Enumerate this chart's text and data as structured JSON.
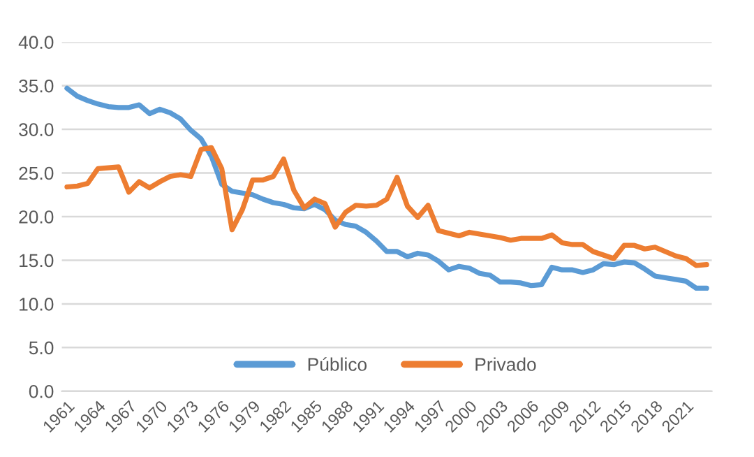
{
  "chart_data": {
    "type": "line",
    "categories": [
      "1961",
      null,
      null,
      "1964",
      null,
      null,
      "1967",
      null,
      null,
      "1970",
      null,
      null,
      "1973",
      null,
      null,
      "1976",
      null,
      null,
      "1979",
      null,
      null,
      "1982",
      null,
      null,
      "1985",
      null,
      null,
      "1988",
      null,
      null,
      "1991",
      null,
      null,
      "1994",
      null,
      null,
      "1997",
      null,
      null,
      "2000",
      null,
      null,
      "2003",
      null,
      null,
      "2006",
      null,
      null,
      "2009",
      null,
      null,
      "2012",
      null,
      null,
      "2015",
      null,
      null,
      "2018",
      null,
      null,
      "2021",
      null,
      null
    ],
    "series": [
      {
        "name": "Público",
        "color": "#5b9bd5",
        "values": [
          34.7,
          33.8,
          33.3,
          32.9,
          32.6,
          32.5,
          32.5,
          32.8,
          31.8,
          32.3,
          31.9,
          31.2,
          29.9,
          28.9,
          26.9,
          23.7,
          22.9,
          22.7,
          22.5,
          22.0,
          21.6,
          21.4,
          21.0,
          20.9,
          21.4,
          20.8,
          19.6,
          19.1,
          18.9,
          18.2,
          17.2,
          16.0,
          16.0,
          15.4,
          15.8,
          15.6,
          14.9,
          13.9,
          14.3,
          14.1,
          13.5,
          13.3,
          12.5,
          12.5,
          12.4,
          12.1,
          12.2,
          14.2,
          13.9,
          13.9,
          13.6,
          13.9,
          14.6,
          14.5,
          14.8,
          14.7,
          14.0,
          13.2,
          13.0,
          12.8,
          12.6,
          11.8,
          11.8
        ]
      },
      {
        "name": "Privado",
        "color": "#ed7d31",
        "values": [
          23.4,
          23.5,
          23.8,
          25.5,
          25.6,
          25.7,
          22.8,
          24.0,
          23.3,
          24.0,
          24.6,
          24.8,
          24.6,
          27.7,
          27.9,
          25.5,
          18.5,
          20.8,
          24.2,
          24.2,
          24.6,
          26.6,
          23.0,
          21.0,
          22.0,
          21.5,
          18.8,
          20.5,
          21.3,
          21.2,
          21.3,
          22.0,
          24.5,
          21.2,
          19.9,
          21.3,
          18.4,
          18.1,
          17.8,
          18.2,
          18.0,
          17.8,
          17.6,
          17.3,
          17.5,
          17.5,
          17.5,
          17.9,
          17.0,
          16.8,
          16.8,
          16.0,
          15.6,
          15.2,
          16.7,
          16.7,
          16.3,
          16.5,
          16.0,
          15.5,
          15.2,
          14.4,
          14.5
        ]
      }
    ],
    "ylim": [
      0,
      40
    ],
    "yticks": [
      {
        "value": 0,
        "label": "0.0"
      },
      {
        "value": 5,
        "label": "5.0"
      },
      {
        "value": 10,
        "label": "10.0"
      },
      {
        "value": 15,
        "label": "15.0"
      },
      {
        "value": 20,
        "label": "20.0"
      },
      {
        "value": 25,
        "label": "25.0"
      },
      {
        "value": 30,
        "label": "30.0"
      },
      {
        "value": 35,
        "label": "35.0"
      },
      {
        "value": 40,
        "label": "40.0"
      }
    ],
    "grid": "y",
    "legend": "bottom",
    "marker": "none",
    "line_style": "solid"
  }
}
